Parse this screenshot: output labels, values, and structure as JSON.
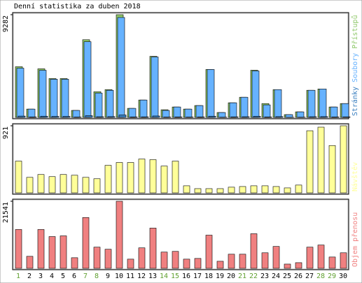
{
  "chart_data": [
    {
      "type": "bar",
      "title": "Denní statistika za duben 2018",
      "categories": [
        "1",
        "2",
        "3",
        "4",
        "5",
        "6",
        "7",
        "8",
        "9",
        "10",
        "11",
        "12",
        "13",
        "14",
        "15",
        "16",
        "17",
        "18",
        "19",
        "20",
        "21",
        "22",
        "23",
        "24",
        "25",
        "26",
        "27",
        "28",
        "29",
        "30"
      ],
      "series": [
        {
          "name": "Přístupů",
          "color": "#8fc86a",
          "values": [
            4578,
            750,
            4390,
            3510,
            3510,
            630,
            7020,
            2320,
            2510,
            9282,
            815,
            1570,
            5520,
            690,
            940,
            750,
            1070,
            4330,
            440,
            1320,
            1820,
            4265,
            1250,
            2510,
            250,
            500,
            2450,
            2570,
            940,
            1250
          ]
        },
        {
          "name": "Soubory",
          "color": "#66b2ff",
          "values": [
            4450,
            750,
            4260,
            3450,
            3450,
            630,
            6840,
            2200,
            2450,
            9030,
            815,
            1570,
            5460,
            630,
            940,
            750,
            1070,
            4330,
            440,
            1320,
            1820,
            4200,
            1130,
            2510,
            250,
            500,
            2450,
            2570,
            940,
            1250
          ]
        },
        {
          "name": "Stránky",
          "color": "#3a7fc0",
          "values": [
            120,
            40,
            110,
            90,
            90,
            30,
            160,
            60,
            70,
            220,
            40,
            50,
            130,
            30,
            40,
            30,
            40,
            110,
            20,
            50,
            60,
            100,
            40,
            70,
            10,
            20,
            60,
            70,
            40,
            50
          ]
        }
      ],
      "ylim": [
        0,
        9282
      ],
      "yticks": [
        9282
      ]
    },
    {
      "type": "bar",
      "categories": [
        "1",
        "2",
        "3",
        "4",
        "5",
        "6",
        "7",
        "8",
        "9",
        "10",
        "11",
        "12",
        "13",
        "14",
        "15",
        "16",
        "17",
        "18",
        "19",
        "20",
        "21",
        "22",
        "23",
        "24",
        "25",
        "26",
        "27",
        "28",
        "29",
        "30"
      ],
      "series": [
        {
          "name": "Návštěv",
          "color": "#ffff99",
          "values": [
            436,
            213,
            252,
            223,
            252,
            242,
            213,
            194,
            378,
            417,
            417,
            465,
            456,
            368,
            436,
            97,
            58,
            58,
            58,
            78,
            87,
            97,
            97,
            87,
            68,
            107,
            853,
            902,
            650,
            921
          ]
        }
      ],
      "ylim": [
        0,
        921
      ],
      "yticks": [
        921
      ]
    },
    {
      "type": "bar",
      "categories": [
        "1",
        "2",
        "3",
        "4",
        "5",
        "6",
        "7",
        "8",
        "9",
        "10",
        "11",
        "12",
        "13",
        "14",
        "15",
        "16",
        "17",
        "18",
        "19",
        "20",
        "21",
        "22",
        "23",
        "24",
        "25",
        "26",
        "27",
        "28",
        "29",
        "30"
      ],
      "series": [
        {
          "name": "Objem přenosu",
          "color": "#f08080",
          "values": [
            12471,
            3855,
            12471,
            10204,
            10430,
            3401,
            16326,
            6802,
            6122,
            21541,
            2948,
            6576,
            12924,
            5215,
            5442,
            2948,
            3174,
            10657,
            2267,
            4535,
            4535,
            11110,
            4988,
            7029,
            1360,
            1814,
            6802,
            7483,
            3628,
            4988
          ]
        }
      ],
      "ylim": [
        0,
        21541
      ],
      "yticks": [
        21541
      ],
      "category_colors": [
        "#60a030",
        "#000000",
        "#000000",
        "#000000",
        "#000000",
        "#000000",
        "#60a030",
        "#60a030",
        "#000000",
        "#000000",
        "#000000",
        "#000000",
        "#000000",
        "#60a030",
        "#60a030",
        "#000000",
        "#000000",
        "#000000",
        "#000000",
        "#000000",
        "#60a030",
        "#60a030",
        "#000000",
        "#000000",
        "#000000",
        "#000000",
        "#000000",
        "#60a030",
        "#60a030",
        "#000000"
      ]
    }
  ]
}
